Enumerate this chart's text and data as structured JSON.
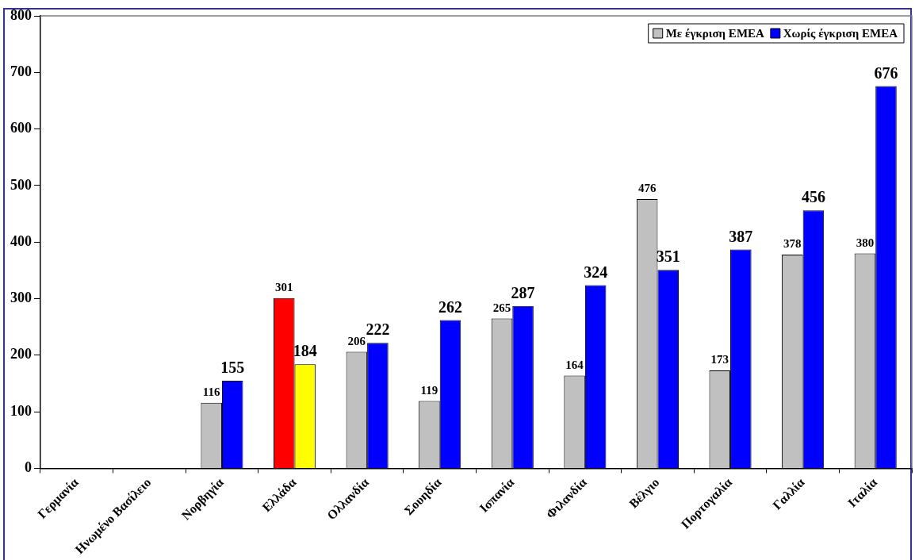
{
  "chart_data": {
    "type": "bar",
    "categories": [
      "Γερμανία",
      "Ηνωμένο Βασίλειο",
      "Νορβηγία",
      "Ελλάδα",
      "Ολλανδία",
      "Σουηδία",
      "Ισπανία",
      "Φιλανδία",
      "Βέλγιο",
      "Πορτογαλία",
      "Γαλλία",
      "Ιταλία"
    ],
    "series": [
      {
        "name": "Με έγκριση EMEA",
        "color": "#c0c0c0",
        "colors": [
          "#c0c0c0",
          "#c0c0c0",
          "#c0c0c0",
          "#ff0000",
          "#c0c0c0",
          "#c0c0c0",
          "#c0c0c0",
          "#c0c0c0",
          "#c0c0c0",
          "#c0c0c0",
          "#c0c0c0",
          "#c0c0c0"
        ],
        "values": [
          null,
          null,
          116,
          301,
          206,
          119,
          265,
          164,
          476,
          173,
          378,
          380
        ]
      },
      {
        "name": "Χωρίς έγκριση EMEA",
        "color": "#0000ff",
        "colors": [
          "#0000ff",
          "#0000ff",
          "#0000ff",
          "#ffff00",
          "#0000ff",
          "#0000ff",
          "#0000ff",
          "#0000ff",
          "#0000ff",
          "#0000ff",
          "#0000ff",
          "#0000ff"
        ],
        "values": [
          null,
          null,
          155,
          184,
          222,
          262,
          287,
          324,
          351,
          387,
          456,
          676
        ]
      }
    ],
    "ylim": [
      0,
      800
    ],
    "yticks": [
      0,
      100,
      200,
      300,
      400,
      500,
      600,
      700,
      800
    ],
    "grid": false,
    "legend": "top right",
    "data_labels": true
  }
}
